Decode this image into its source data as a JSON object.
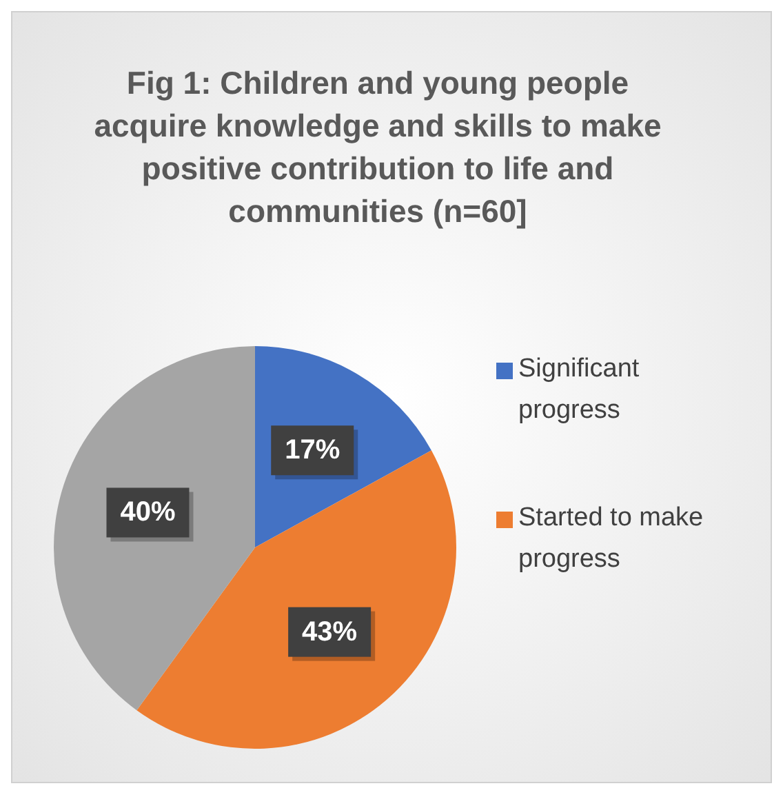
{
  "chart_data": {
    "type": "pie",
    "title": "Fig 1: Children and young people acquire knowledge and skills to make positive contribution to life and communities (n=60]",
    "categories": [
      "Significant progress",
      "Started to make progress",
      null
    ],
    "values": [
      17,
      43,
      40
    ],
    "colors": [
      "#4472c4",
      "#ed7d31",
      "#a5a5a5"
    ],
    "value_labels": [
      "17%",
      "43%",
      "40%"
    ],
    "legend": "right"
  }
}
